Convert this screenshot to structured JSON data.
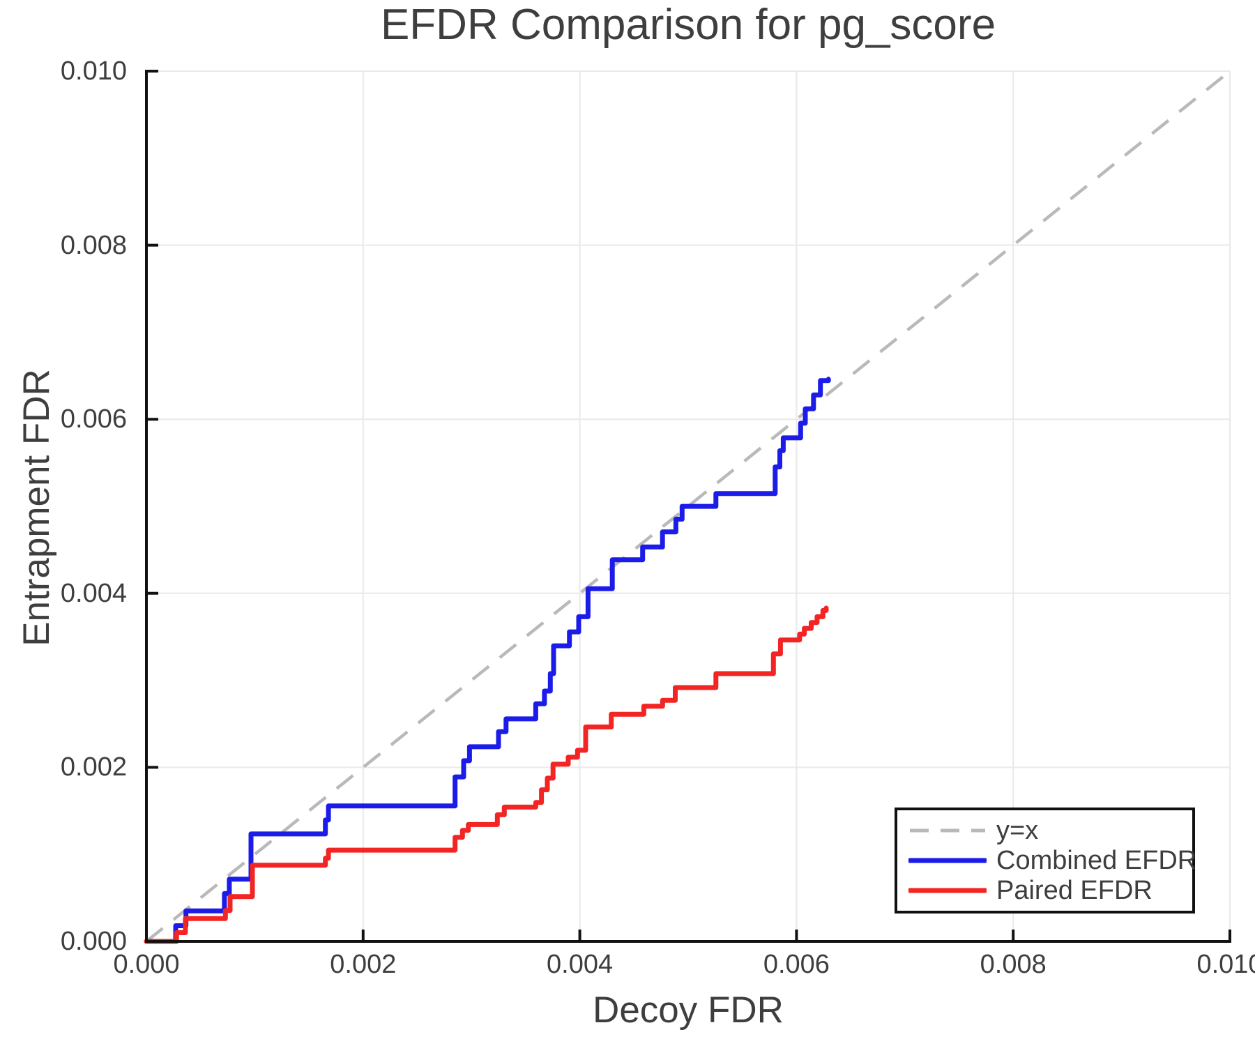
{
  "title": "EFDR Comparison for pg_score",
  "chart_data": {
    "type": "line",
    "subtype": "step-post-staircase",
    "title": "EFDR Comparison for pg_score",
    "xlabel": "Decoy FDR",
    "ylabel": "Entrapment FDR",
    "xlim": [
      0.0,
      0.01
    ],
    "ylim": [
      0.0,
      0.01
    ],
    "x_ticks": [
      0.0,
      0.002,
      0.004,
      0.006,
      0.008,
      0.01
    ],
    "x_tick_labels": [
      "0.000",
      "0.002",
      "0.004",
      "0.006",
      "0.008",
      "0.010"
    ],
    "y_ticks": [
      0.0,
      0.002,
      0.004,
      0.006,
      0.008,
      0.01
    ],
    "y_tick_labels": [
      "0.000",
      "0.002",
      "0.004",
      "0.006",
      "0.008",
      "0.010"
    ],
    "grid": true,
    "legend_position": "lower right",
    "reference_line": {
      "label": "y=x",
      "style": "dashed",
      "color": "#b9b9b9",
      "from": [
        0.0,
        0.0
      ],
      "to": [
        0.01,
        0.01
      ]
    },
    "series": [
      {
        "name": "Combined EFDR",
        "color": "#1c1ce8",
        "step": "post",
        "points": [
          [
            0.0,
            0.0
          ],
          [
            0.00027,
            0.00018
          ],
          [
            0.000365,
            0.00035
          ],
          [
            0.00072,
            0.00055
          ],
          [
            0.000765,
            0.000715
          ],
          [
            0.000965,
            0.001235
          ],
          [
            0.001652,
            0.001395
          ],
          [
            0.00168,
            0.001556
          ],
          [
            0.002849,
            0.00189
          ],
          [
            0.002928,
            0.002076
          ],
          [
            0.002982,
            0.002236
          ],
          [
            0.00325,
            0.00241
          ],
          [
            0.003319,
            0.002557
          ],
          [
            0.003593,
            0.00273
          ],
          [
            0.003674,
            0.002877
          ],
          [
            0.003728,
            0.003077
          ],
          [
            0.003758,
            0.003397
          ],
          [
            0.003904,
            0.003557
          ],
          [
            0.00399,
            0.003731
          ],
          [
            0.004076,
            0.004052
          ],
          [
            0.0043,
            0.004385
          ],
          [
            0.00458,
            0.004532
          ],
          [
            0.004763,
            0.004705
          ],
          [
            0.004887,
            0.004852
          ],
          [
            0.004944,
            0.004999
          ],
          [
            0.005256,
            0.005146
          ],
          [
            0.005803,
            0.005452
          ],
          [
            0.005846,
            0.005639
          ],
          [
            0.005878,
            0.005786
          ],
          [
            0.006038,
            0.005954
          ],
          [
            0.006081,
            0.006119
          ],
          [
            0.006157,
            0.006279
          ],
          [
            0.006221,
            0.006444
          ],
          [
            0.006295,
            0.00646
          ]
        ]
      },
      {
        "name": "Paired EFDR",
        "color": "#f32424",
        "step": "post",
        "points": [
          [
            0.0,
            0.0
          ],
          [
            0.000278,
            0.0001
          ],
          [
            0.00036,
            0.000262
          ],
          [
            0.000729,
            0.000355
          ],
          [
            0.000772,
            0.000515
          ],
          [
            0.000978,
            0.000875
          ],
          [
            0.001652,
            0.000955
          ],
          [
            0.00168,
            0.001049
          ],
          [
            0.002849,
            0.001196
          ],
          [
            0.002917,
            0.001276
          ],
          [
            0.002971,
            0.001343
          ],
          [
            0.003239,
            0.001455
          ],
          [
            0.003303,
            0.001543
          ],
          [
            0.003593,
            0.001596
          ],
          [
            0.003646,
            0.001742
          ],
          [
            0.0037,
            0.001876
          ],
          [
            0.003753,
            0.002036
          ],
          [
            0.003893,
            0.002116
          ],
          [
            0.003979,
            0.002196
          ],
          [
            0.004054,
            0.002464
          ],
          [
            0.00429,
            0.00261
          ],
          [
            0.004591,
            0.002703
          ],
          [
            0.004764,
            0.00277
          ],
          [
            0.004881,
            0.002917
          ],
          [
            0.005256,
            0.003077
          ],
          [
            0.005787,
            0.003304
          ],
          [
            0.005852,
            0.003464
          ],
          [
            0.006029,
            0.003531
          ],
          [
            0.006072,
            0.003597
          ],
          [
            0.006136,
            0.003664
          ],
          [
            0.00619,
            0.003731
          ],
          [
            0.006244,
            0.003803
          ],
          [
            0.006274,
            0.00383
          ]
        ]
      }
    ]
  }
}
